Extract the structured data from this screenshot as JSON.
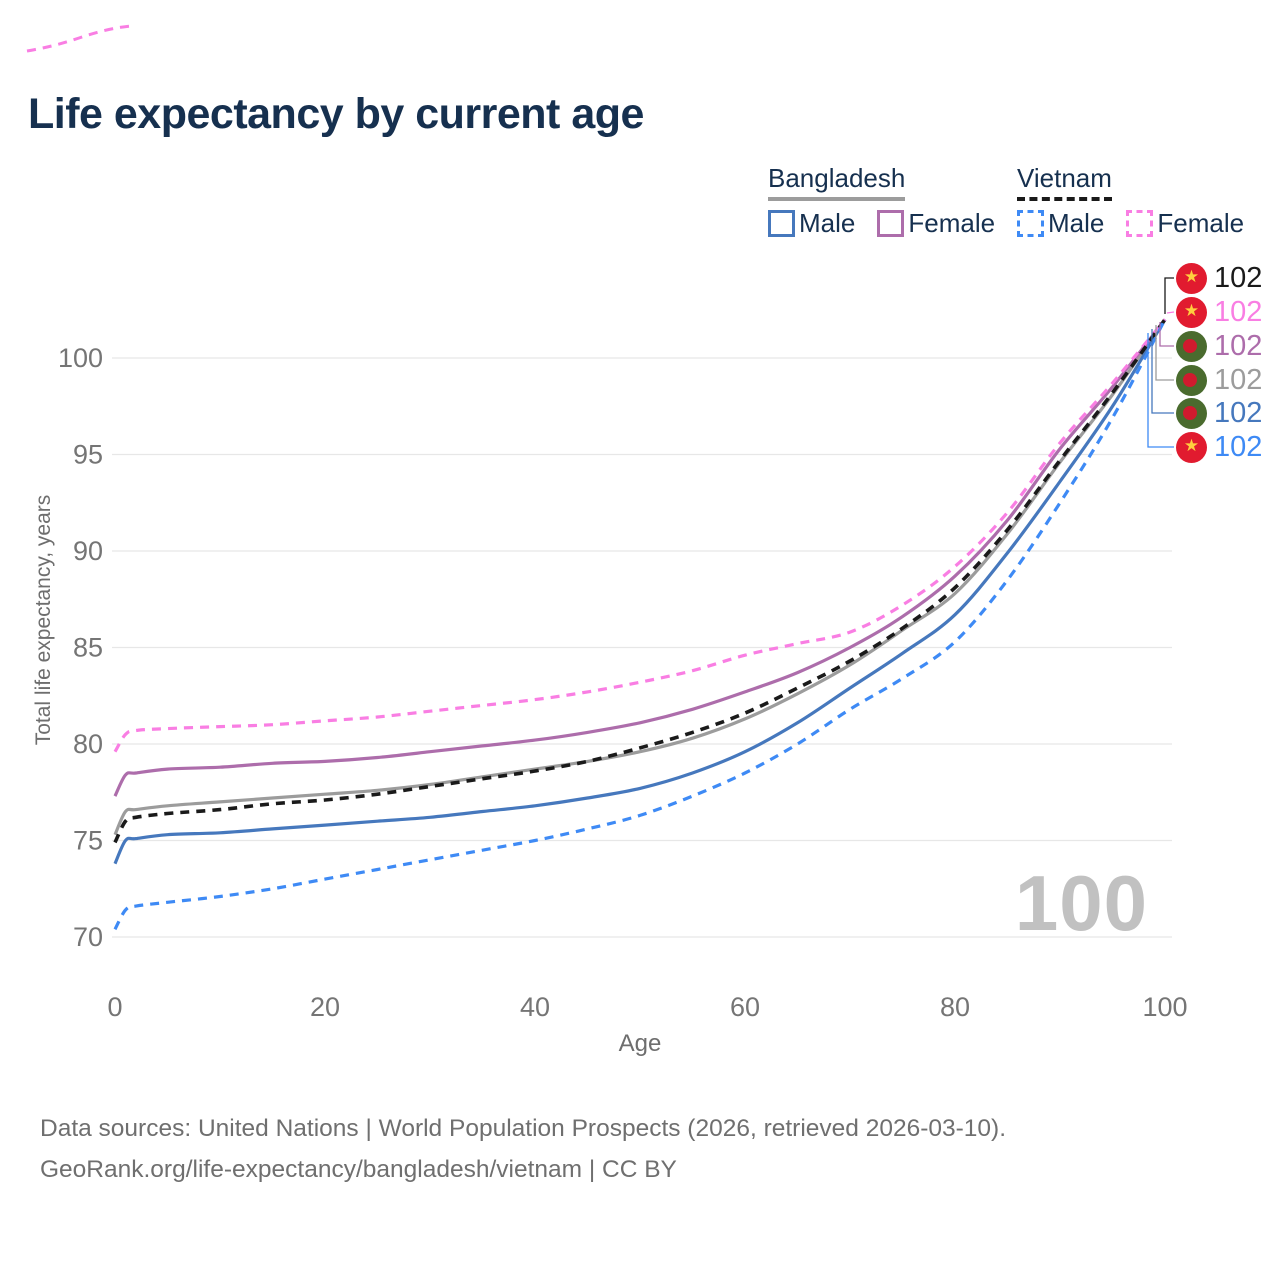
{
  "title": "Life expectancy by current age",
  "watermark": "100",
  "legend": {
    "groups": [
      {
        "label": "Bangladesh",
        "line_style": "solid",
        "underline_color": "#9c9c9c",
        "items": [
          {
            "label": "Male",
            "color": "#4678bd",
            "dashed": false
          },
          {
            "label": "Female",
            "color": "#ad6dab",
            "dashed": false
          }
        ]
      },
      {
        "label": "Vietnam",
        "line_style": "dashed",
        "underline_color": "#1a1a1a",
        "items": [
          {
            "label": "Male",
            "color": "#3e8af5",
            "dashed": true
          },
          {
            "label": "Female",
            "color": "#f97ee3",
            "dashed": true
          }
        ]
      }
    ]
  },
  "chart_data": {
    "type": "line",
    "title": "Life expectancy by current age",
    "xlabel": "Age",
    "ylabel": "Total life expectancy, years",
    "xlim": [
      0,
      100
    ],
    "ylim": [
      69.5,
      103
    ],
    "x_ticks": [
      0,
      20,
      40,
      60,
      80,
      100
    ],
    "y_ticks": [
      70,
      75,
      80,
      85,
      90,
      95,
      100
    ],
    "grid": "horizontal",
    "legend_position": "top-right",
    "x": [
      0,
      1,
      2,
      5,
      10,
      15,
      20,
      25,
      30,
      35,
      40,
      45,
      50,
      55,
      60,
      65,
      70,
      75,
      80,
      85,
      90,
      95,
      100
    ],
    "series": [
      {
        "name": "Bangladesh Male",
        "country": "Bangladesh",
        "sex": "Male",
        "color": "#4678bd",
        "dash": "solid",
        "end_label": "102",
        "values": [
          73.8,
          75.0,
          75.1,
          75.3,
          75.4,
          75.6,
          75.8,
          76.0,
          76.2,
          76.5,
          76.8,
          77.2,
          77.7,
          78.5,
          79.6,
          81.1,
          82.9,
          84.7,
          86.7,
          89.9,
          93.6,
          97.5,
          102
        ]
      },
      {
        "name": "Bangladesh Female",
        "country": "Bangladesh",
        "sex": "Female",
        "color": "#ad6dab",
        "dash": "solid",
        "end_label": "102",
        "values": [
          77.3,
          78.4,
          78.5,
          78.7,
          78.8,
          79.0,
          79.1,
          79.3,
          79.6,
          79.9,
          80.2,
          80.6,
          81.1,
          81.8,
          82.7,
          83.7,
          85.0,
          86.6,
          88.7,
          91.6,
          95.3,
          98.5,
          102
        ]
      },
      {
        "name": "Bangladesh (both sexes)",
        "country": "Bangladesh",
        "sex": "Both",
        "color": "#9c9c9c",
        "dash": "solid",
        "end_label": "102",
        "values": [
          75.3,
          76.5,
          76.6,
          76.8,
          77.0,
          77.2,
          77.4,
          77.6,
          77.9,
          78.3,
          78.7,
          79.1,
          79.6,
          80.3,
          81.3,
          82.6,
          84.1,
          85.9,
          87.8,
          90.9,
          94.6,
          98.1,
          102
        ]
      },
      {
        "name": "Vietnam Male",
        "country": "Vietnam",
        "sex": "Male",
        "color": "#3e8af5",
        "dash": "dashed",
        "end_label": "102",
        "values": [
          70.4,
          71.4,
          71.6,
          71.8,
          72.1,
          72.5,
          73.0,
          73.5,
          74.0,
          74.5,
          75.0,
          75.6,
          76.3,
          77.3,
          78.5,
          80.0,
          81.8,
          83.4,
          85.3,
          88.5,
          92.5,
          96.9,
          102
        ]
      },
      {
        "name": "Vietnam Female",
        "country": "Vietnam",
        "sex": "Female",
        "color": "#f97ee3",
        "dash": "dashed",
        "end_label": "102",
        "values": [
          79.6,
          80.5,
          80.7,
          80.8,
          80.9,
          81.0,
          81.2,
          81.4,
          81.7,
          82.0,
          82.3,
          82.7,
          83.2,
          83.8,
          84.6,
          85.2,
          85.8,
          87.2,
          89.2,
          92.0,
          95.6,
          98.7,
          102
        ]
      },
      {
        "name": "Vietnam (both sexes)",
        "country": "Vietnam",
        "sex": "Both",
        "color": "#1a1a1a",
        "dash": "dashed",
        "end_label": "102",
        "values": [
          74.9,
          76.0,
          76.2,
          76.4,
          76.6,
          76.9,
          77.1,
          77.4,
          77.8,
          78.2,
          78.6,
          79.1,
          79.8,
          80.6,
          81.6,
          82.9,
          84.3,
          86.0,
          88.1,
          91.1,
          94.7,
          98.2,
          102
        ]
      }
    ]
  },
  "end_labels": [
    {
      "flag": "vietnam",
      "value": "102",
      "series": "Vietnam (both sexes)",
      "color": "#1a1a1a"
    },
    {
      "flag": "vietnam",
      "value": "102",
      "series": "Vietnam Female",
      "color": "#f97ee3"
    },
    {
      "flag": "bangladesh",
      "value": "102",
      "series": "Bangladesh Female",
      "color": "#ad6dab"
    },
    {
      "flag": "bangladesh",
      "value": "102",
      "series": "Bangladesh (both sexes)",
      "color": "#9c9c9c"
    },
    {
      "flag": "bangladesh",
      "value": "102",
      "series": "Bangladesh Male",
      "color": "#4678bd"
    },
    {
      "flag": "vietnam",
      "value": "102",
      "series": "Vietnam Male",
      "color": "#3e8af5"
    }
  ],
  "footer": {
    "line1": "Data sources: United Nations | World Population Prospects (2026, retrieved 2026-03-10).",
    "line2": "GeoRank.org/life-expectancy/bangladesh/vietnam | CC BY"
  }
}
